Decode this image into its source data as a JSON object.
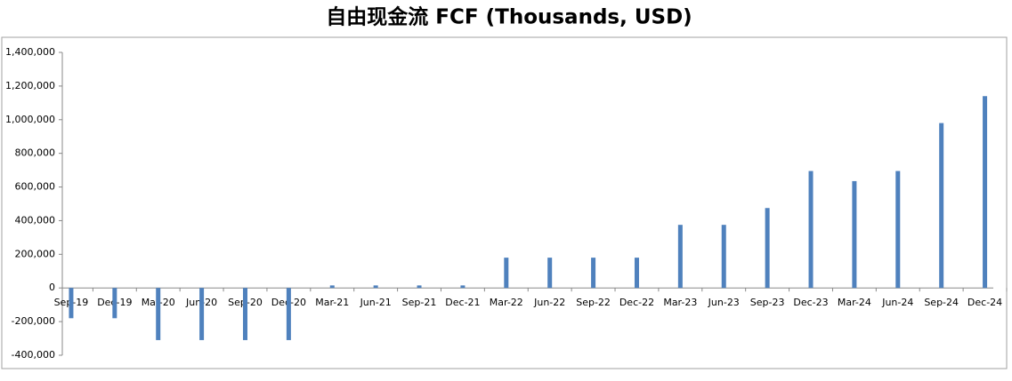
{
  "chart_data": {
    "type": "bar",
    "title": "自由现金流 FCF (Thousands, USD)",
    "categories": [
      "Sep-19",
      "Dec-19",
      "Mar-20",
      "Jun-20",
      "Sep-20",
      "Dec-20",
      "Mar-21",
      "Jun-21",
      "Sep-21",
      "Dec-21",
      "Mar-22",
      "Jun-22",
      "Sep-22",
      "Dec-22",
      "Mar-23",
      "Jun-23",
      "Sep-23",
      "Dec-23",
      "Mar-24",
      "Jun-24",
      "Sep-24",
      "Dec-24"
    ],
    "values": [
      -180000,
      -180000,
      -310000,
      -310000,
      -310000,
      -310000,
      15000,
      15000,
      15000,
      15000,
      180000,
      180000,
      180000,
      180000,
      375000,
      375000,
      475000,
      695000,
      635000,
      695000,
      980000,
      1140000
    ],
    "color": "#4f81bd",
    "ylim": [
      -400000,
      1400000
    ],
    "yticks": [
      {
        "value": -400000,
        "label": "-400,000"
      },
      {
        "value": -200000,
        "label": "-200,000"
      },
      0,
      {
        "value": 200000,
        "label": "200,000"
      },
      {
        "value": 400000,
        "label": "400,000"
      },
      {
        "value": 600000,
        "label": "600,000"
      },
      {
        "value": 800000,
        "label": "800,000"
      },
      {
        "value": 1000000,
        "label": "1,000,000"
      },
      {
        "value": 1200000,
        "label": "1,200,000"
      },
      {
        "value": 1400000,
        "label": "1,400,000"
      }
    ],
    "grid": false
  }
}
